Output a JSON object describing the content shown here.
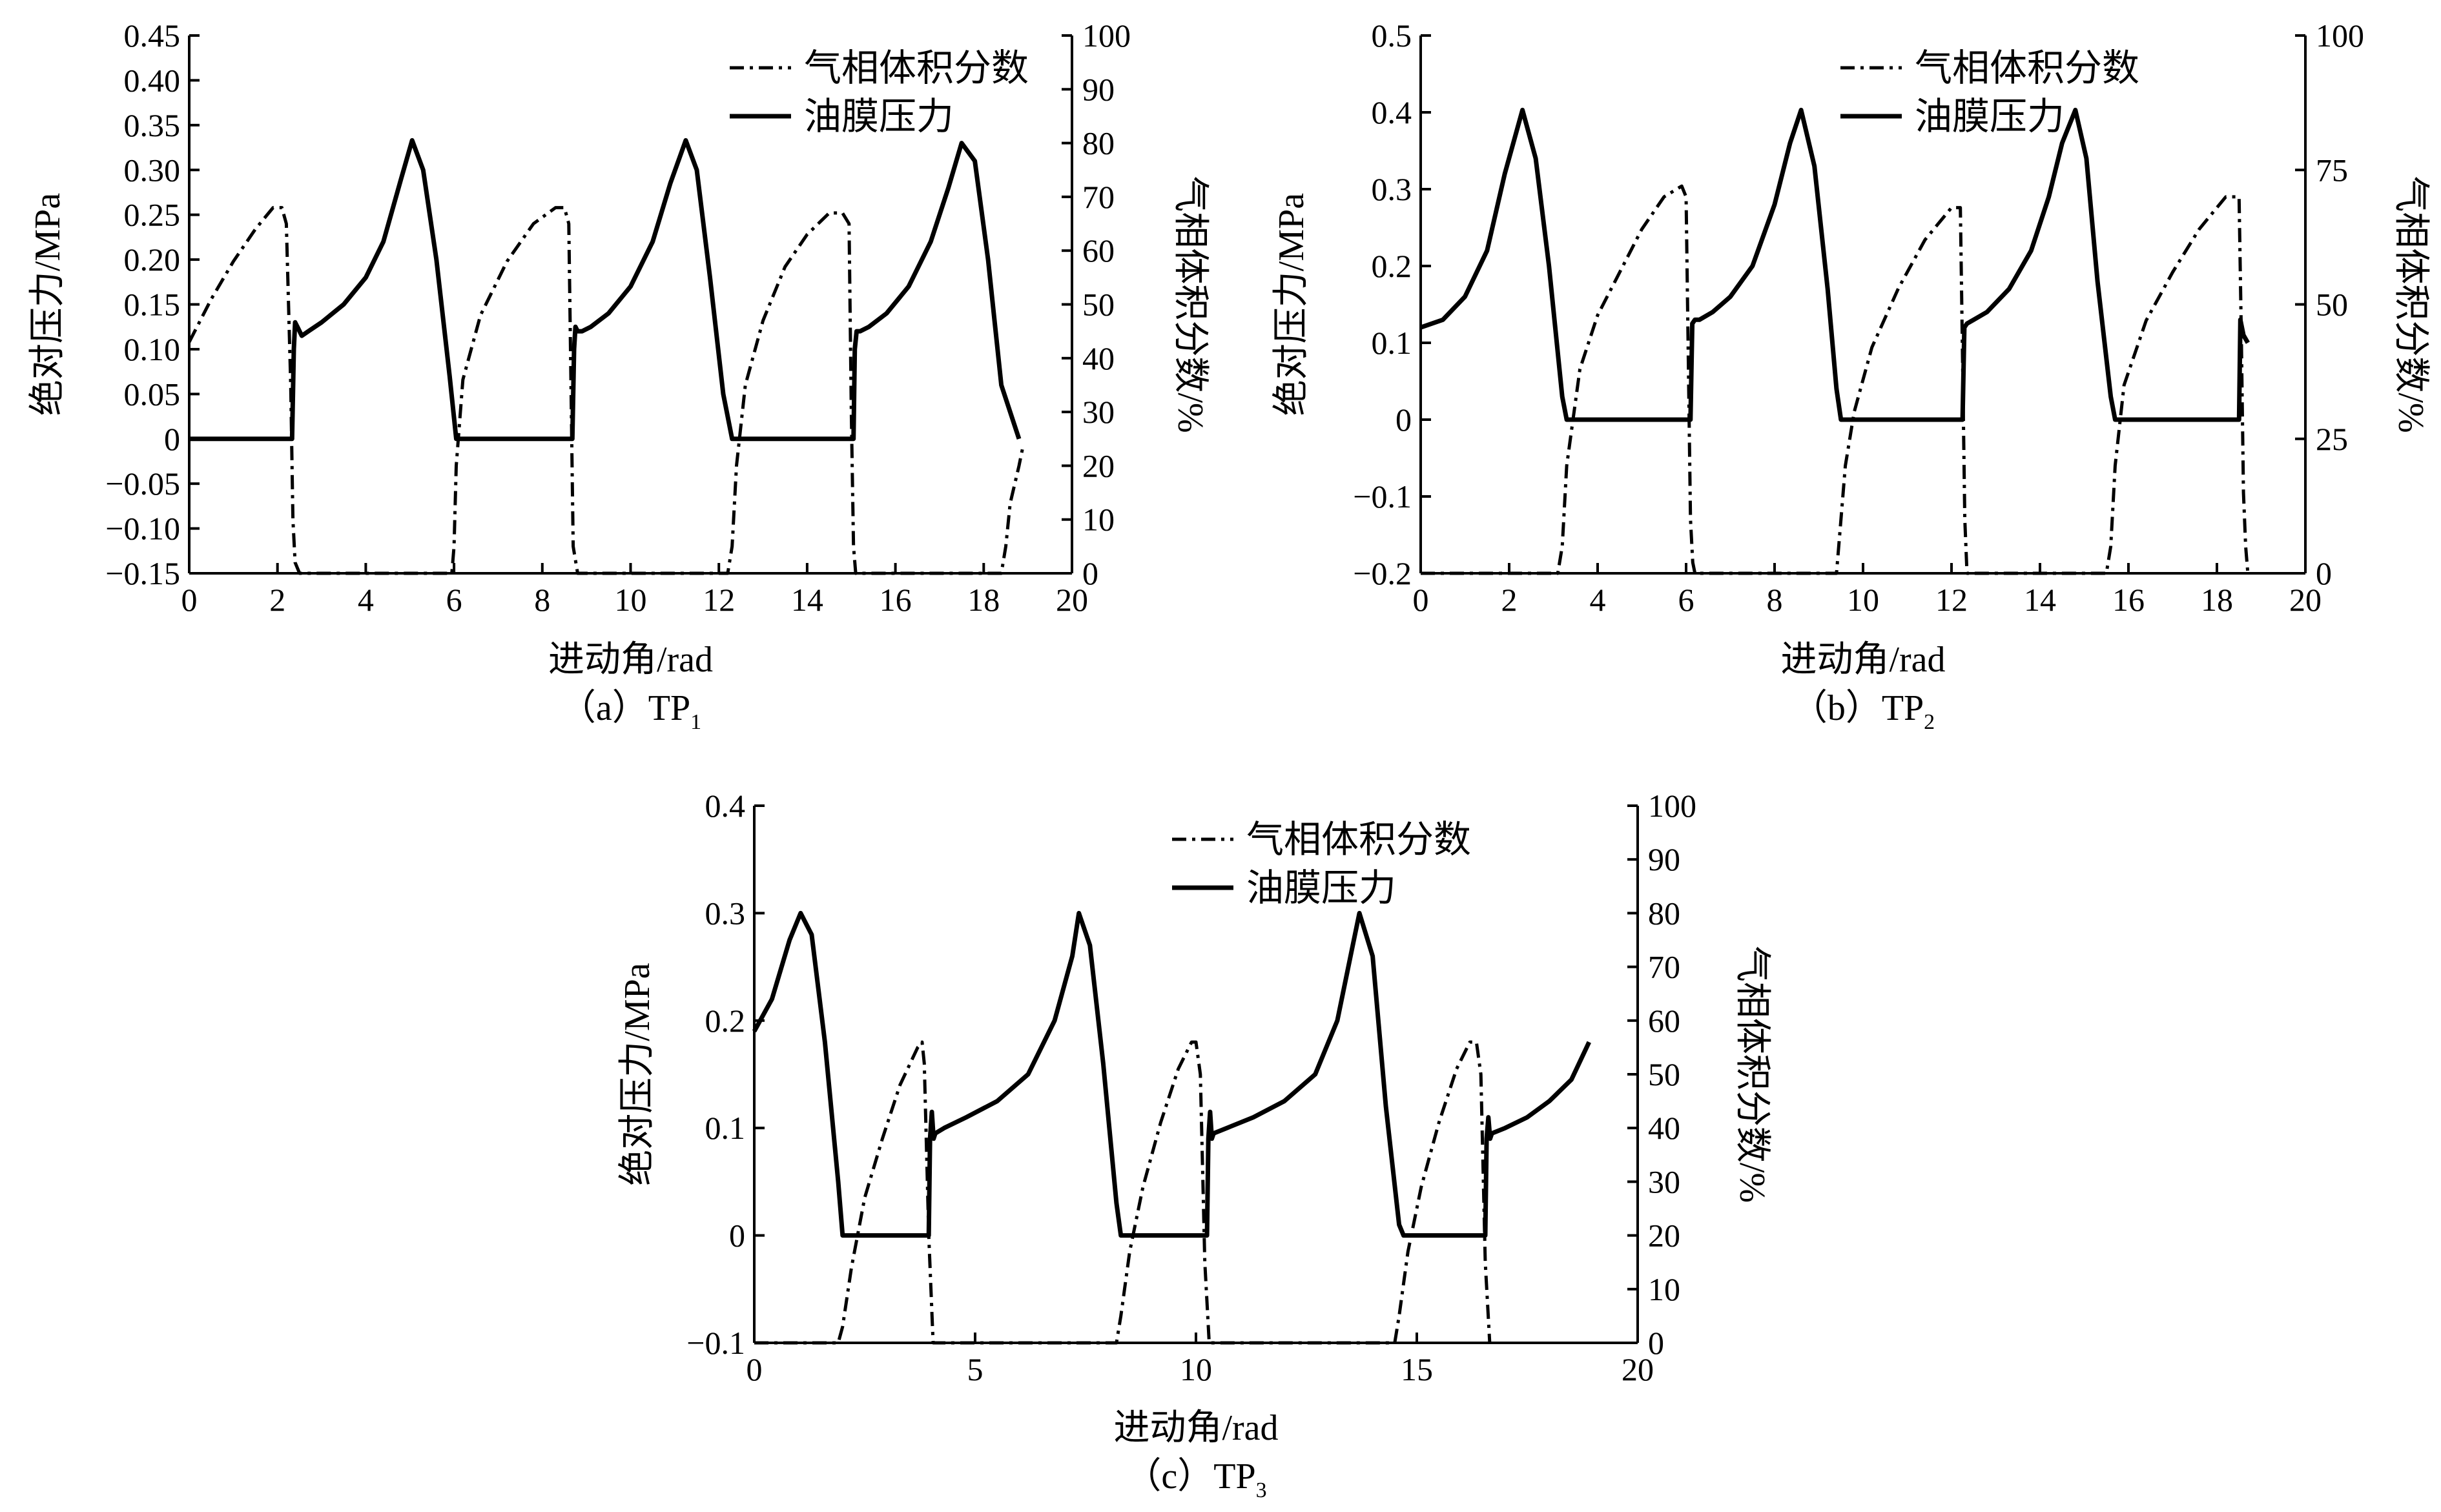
{
  "chart_data": [
    {
      "type": "line",
      "caption": "（a）TP",
      "caption_sub": "1",
      "xlabel": "进动角/rad",
      "ylabel": "绝对压力/MPa",
      "ylabel_right": "气相体积分数/%",
      "xlim": [
        0,
        20
      ],
      "ylim": [
        -0.15,
        0.45
      ],
      "ylim_right": [
        0,
        100
      ],
      "xticks": [
        0,
        2,
        4,
        6,
        8,
        10,
        12,
        14,
        16,
        18,
        20
      ],
      "yticks": [
        -0.15,
        -0.1,
        -0.05,
        0,
        0.05,
        0.1,
        0.15,
        0.2,
        0.25,
        0.3,
        0.35,
        0.4,
        0.45
      ],
      "ytick_labels": [
        "−0.15",
        "−0.10",
        "−0.05",
        "0",
        "0.05",
        "0.10",
        "0.15",
        "0.20",
        "0.25",
        "0.30",
        "0.35",
        "0.40",
        "0.45"
      ],
      "yticks_right": [
        0,
        10,
        20,
        30,
        40,
        50,
        60,
        70,
        80,
        90,
        100
      ],
      "legend": {
        "placement": "top-right",
        "entries": [
          "气相体积分数",
          "油膜压力"
        ]
      },
      "series": [
        {
          "name": "气相体积分数",
          "axis": "right",
          "style": "dashdot",
          "x": [
            0,
            0.5,
            1.0,
            1.5,
            1.9,
            2.1,
            2.2,
            2.3,
            2.35,
            2.4,
            2.5,
            5.0,
            5.95,
            6.0,
            6.05,
            6.2,
            6.6,
            7.2,
            7.8,
            8.3,
            8.5,
            8.6,
            8.65,
            8.7,
            8.8,
            12.2,
            12.3,
            12.4,
            12.6,
            13.0,
            13.5,
            14.0,
            14.5,
            14.8,
            14.95,
            15.0,
            15.05,
            15.1,
            18.4,
            18.5,
            18.6,
            18.8,
            18.9
          ],
          "y": [
            43,
            51,
            58,
            64,
            68,
            68,
            65,
            35,
            10,
            2,
            0,
            0,
            0,
            5,
            20,
            36,
            48,
            58,
            65,
            68,
            68,
            65,
            35,
            5,
            0,
            0,
            5,
            20,
            35,
            47,
            57,
            63,
            67,
            67,
            65,
            30,
            5,
            0,
            0,
            5,
            13,
            20,
            24
          ]
        },
        {
          "name": "油膜压力",
          "axis": "left",
          "style": "solid",
          "x": [
            0,
            2.33,
            2.37,
            2.4,
            2.45,
            2.55,
            2.7,
            3.0,
            3.5,
            4.0,
            4.4,
            4.8,
            5.05,
            5.3,
            5.6,
            5.9,
            6.05,
            8.68,
            8.72,
            8.75,
            8.8,
            8.9,
            9.1,
            9.5,
            10.0,
            10.5,
            10.9,
            11.25,
            11.5,
            11.8,
            12.1,
            12.3,
            15.05,
            15.08,
            15.12,
            15.2,
            15.4,
            15.8,
            16.3,
            16.8,
            17.2,
            17.5,
            17.8,
            18.1,
            18.4,
            18.8
          ],
          "y": [
            0,
            0,
            0.1,
            0.13,
            0.125,
            0.115,
            0.12,
            0.13,
            0.15,
            0.18,
            0.22,
            0.29,
            0.333,
            0.3,
            0.2,
            0.07,
            0,
            0,
            0.1,
            0.125,
            0.12,
            0.12,
            0.125,
            0.14,
            0.17,
            0.22,
            0.285,
            0.333,
            0.3,
            0.18,
            0.05,
            0,
            0,
            0.1,
            0.12,
            0.12,
            0.125,
            0.14,
            0.17,
            0.22,
            0.28,
            0.33,
            0.31,
            0.2,
            0.06,
            0
          ]
        }
      ]
    },
    {
      "type": "line",
      "caption": "（b）TP",
      "caption_sub": "2",
      "xlabel": "进动角/rad",
      "ylabel": "绝对压力/MPa",
      "ylabel_right": "气相体积分数/%",
      "xlim": [
        0,
        20
      ],
      "ylim": [
        -0.2,
        0.5
      ],
      "ylim_right": [
        0,
        100
      ],
      "xticks": [
        0,
        2,
        4,
        6,
        8,
        10,
        12,
        14,
        16,
        18,
        20
      ],
      "yticks": [
        -0.2,
        -0.1,
        0,
        0.1,
        0.2,
        0.3,
        0.4,
        0.5
      ],
      "ytick_labels": [
        "−0.2",
        "−0.1",
        "0",
        "0.1",
        "0.2",
        "0.3",
        "0.4",
        "0.5"
      ],
      "yticks_right": [
        0,
        25,
        50,
        75,
        100
      ],
      "legend": {
        "placement": "top-right",
        "entries": [
          "气相体积分数",
          "油膜压力"
        ]
      },
      "series": [
        {
          "name": "气相体积分数",
          "axis": "right",
          "style": "dashdot",
          "x": [
            0,
            3.1,
            3.2,
            3.3,
            3.6,
            4.0,
            4.5,
            5.0,
            5.5,
            5.9,
            6.0,
            6.05,
            6.1,
            6.15,
            6.2,
            9.4,
            9.5,
            9.6,
            9.8,
            10.2,
            10.8,
            11.4,
            12.0,
            12.2,
            12.25,
            12.3,
            12.35,
            15.5,
            15.6,
            15.7,
            15.9,
            16.4,
            17.0,
            17.6,
            18.2,
            18.5,
            18.55,
            18.6,
            18.65,
            18.7
          ],
          "y": [
            0,
            0,
            5,
            20,
            38,
            48,
            56,
            64,
            70,
            72,
            70,
            40,
            10,
            2,
            0,
            0,
            10,
            20,
            30,
            42,
            53,
            62,
            68,
            68,
            40,
            10,
            0,
            0,
            5,
            20,
            35,
            47,
            56,
            64,
            70,
            70,
            45,
            15,
            5,
            0
          ]
        },
        {
          "name": "油膜压力",
          "axis": "left",
          "style": "solid",
          "x": [
            0,
            0.5,
            1.0,
            1.5,
            1.9,
            2.3,
            2.6,
            2.9,
            3.2,
            3.3,
            6.1,
            6.14,
            6.2,
            6.3,
            6.6,
            7.0,
            7.5,
            8.0,
            8.35,
            8.6,
            8.9,
            9.2,
            9.4,
            9.5,
            12.25,
            12.29,
            12.35,
            12.5,
            12.8,
            13.3,
            13.8,
            14.2,
            14.5,
            14.8,
            15.05,
            15.3,
            15.6,
            15.7,
            18.5,
            18.53,
            18.6,
            18.7
          ],
          "y": [
            0.12,
            0.13,
            0.16,
            0.22,
            0.32,
            0.403,
            0.34,
            0.2,
            0.03,
            0,
            0,
            0.125,
            0.13,
            0.13,
            0.14,
            0.16,
            0.2,
            0.28,
            0.36,
            0.403,
            0.33,
            0.17,
            0.04,
            0,
            0,
            0.12,
            0.125,
            0.13,
            0.14,
            0.17,
            0.22,
            0.29,
            0.36,
            0.403,
            0.34,
            0.18,
            0.03,
            0,
            0,
            0.13,
            0.11,
            0.1
          ]
        }
      ]
    },
    {
      "type": "line",
      "caption": "（c）TP",
      "caption_sub": "3",
      "xlabel": "进动角/rad",
      "ylabel": "绝对压力/MPa",
      "ylabel_right": "气相体积分数/%",
      "xlim": [
        0,
        20
      ],
      "ylim": [
        -0.1,
        0.4
      ],
      "ylim_right": [
        0,
        100
      ],
      "xticks": [
        0,
        5,
        10,
        15,
        20
      ],
      "yticks": [
        -0.1,
        0,
        0.1,
        0.2,
        0.3,
        0.4
      ],
      "ytick_labels": [
        "−0.1",
        "0",
        "0.1",
        "0.2",
        "0.3",
        "0.4"
      ],
      "yticks_right": [
        0,
        10,
        20,
        30,
        40,
        50,
        60,
        70,
        80,
        90,
        100
      ],
      "legend": {
        "placement": "top-right",
        "entries": [
          "气相体积分数",
          "油膜压力"
        ]
      },
      "series": [
        {
          "name": "气相体积分数",
          "axis": "right",
          "style": "dashdot",
          "x": [
            0,
            1.9,
            2.0,
            2.2,
            2.5,
            2.9,
            3.3,
            3.7,
            3.8,
            3.85,
            3.95,
            4.05,
            8.2,
            8.3,
            8.5,
            8.8,
            9.2,
            9.6,
            9.9,
            10.0,
            10.1,
            10.2,
            10.3,
            14.5,
            14.6,
            14.8,
            15.1,
            15.5,
            15.9,
            16.2,
            16.35,
            16.45,
            16.55,
            16.65
          ],
          "y": [
            0,
            0,
            3,
            14,
            27,
            38,
            48,
            55,
            56,
            52,
            20,
            0,
            0,
            5,
            17,
            29,
            41,
            51,
            56,
            56,
            50,
            15,
            0,
            0,
            5,
            17,
            29,
            41,
            51,
            56,
            56,
            50,
            15,
            0
          ]
        },
        {
          "name": "油膜压力",
          "axis": "left",
          "style": "solid",
          "x": [
            0,
            0.4,
            0.8,
            1.05,
            1.3,
            1.6,
            1.9,
            2.0,
            3.95,
            3.98,
            4.02,
            4.06,
            4.1,
            4.3,
            4.8,
            5.5,
            6.2,
            6.8,
            7.2,
            7.35,
            7.6,
            7.9,
            8.2,
            8.3,
            10.25,
            10.28,
            10.32,
            10.36,
            10.4,
            10.7,
            11.3,
            12.0,
            12.7,
            13.2,
            13.55,
            13.7,
            14.0,
            14.3,
            14.6,
            14.7,
            16.55,
            16.58,
            16.62,
            16.66,
            16.7,
            17.0,
            17.5,
            18.0,
            18.5,
            18.9
          ],
          "y": [
            0.19,
            0.22,
            0.275,
            0.3,
            0.28,
            0.18,
            0.05,
            0,
            0,
            0.09,
            0.115,
            0.09,
            0.095,
            0.1,
            0.11,
            0.125,
            0.15,
            0.2,
            0.26,
            0.3,
            0.27,
            0.16,
            0.03,
            0,
            0,
            0.09,
            0.115,
            0.09,
            0.095,
            0.1,
            0.11,
            0.125,
            0.15,
            0.2,
            0.27,
            0.3,
            0.26,
            0.12,
            0.01,
            0,
            0,
            0.09,
            0.11,
            0.09,
            0.095,
            0.1,
            0.11,
            0.125,
            0.145,
            0.18
          ]
        }
      ]
    }
  ]
}
